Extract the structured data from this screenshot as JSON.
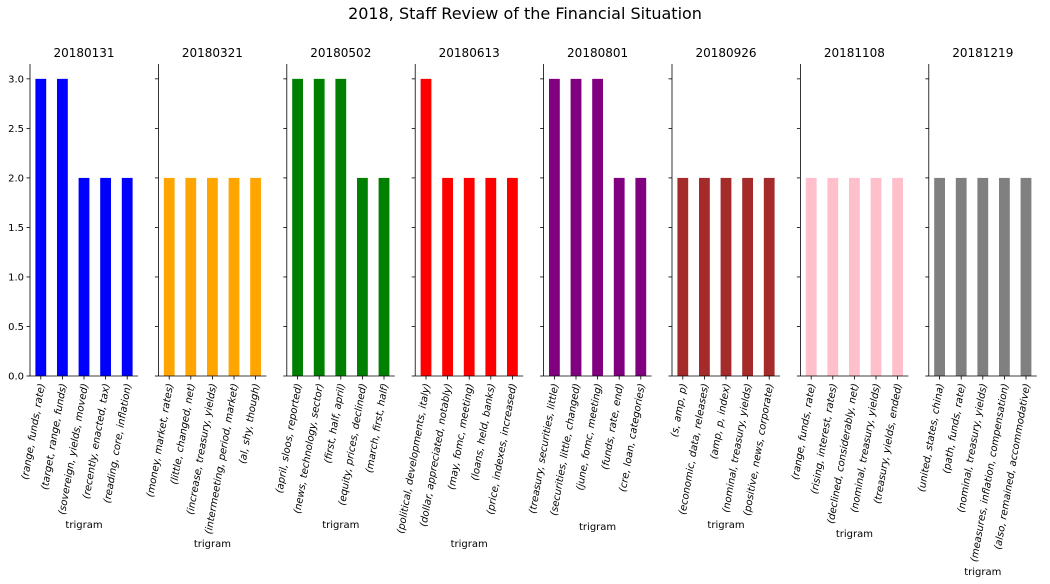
{
  "figure": {
    "title": "2018, Staff Review of the Financial Situation"
  },
  "chart_data": [
    {
      "type": "bar",
      "title": "20180131",
      "xlabel": "trigram",
      "ylabel": "",
      "ylim": [
        0,
        3.15
      ],
      "yticks": [
        "0.0",
        "0.5",
        "1.0",
        "1.5",
        "2.0",
        "2.5",
        "3.0"
      ],
      "color": "#0000ff",
      "categories": [
        "(range, funds, rate)",
        "(target, range, funds)",
        "(sovereign, yields, moved)",
        "(recently, enacted, tax)",
        "(reading, core, inflation)"
      ],
      "values": [
        3,
        3,
        2,
        2,
        2
      ]
    },
    {
      "type": "bar",
      "title": "20180321",
      "xlabel": "trigram",
      "ylabel": "",
      "ylim": [
        0,
        3.15
      ],
      "color": "#ffa500",
      "categories": [
        "(money, market, rates)",
        "(little, changed, net)",
        "(increase, treasury, yields)",
        "(intermeeting, period, market)",
        "(al, shy, though)"
      ],
      "values": [
        2,
        2,
        2,
        2,
        2
      ]
    },
    {
      "type": "bar",
      "title": "20180502",
      "xlabel": "trigram",
      "ylabel": "",
      "ylim": [
        0,
        3.15
      ],
      "color": "#008000",
      "categories": [
        "(april, sloos, reported)",
        "(news, technology, sector)",
        "(first, half, april)",
        "(equity, prices, declined)",
        "(march, first, half)"
      ],
      "values": [
        3,
        3,
        3,
        2,
        2
      ]
    },
    {
      "type": "bar",
      "title": "20180613",
      "xlabel": "trigram",
      "ylabel": "",
      "ylim": [
        0,
        3.15
      ],
      "color": "#ff0000",
      "categories": [
        "(political, developments, italy)",
        "(dollar, appreciated, notably)",
        "(may, fomc, meeting)",
        "(loans, held, banks)",
        "(price, indexes, increased)"
      ],
      "values": [
        3,
        2,
        2,
        2,
        2
      ]
    },
    {
      "type": "bar",
      "title": "20180801",
      "xlabel": "trigram",
      "ylabel": "",
      "ylim": [
        0,
        3.15
      ],
      "color": "#800080",
      "categories": [
        "(treasury, securities, little)",
        "(securities, little, changed)",
        "(june, fomc, meeting)",
        "(funds, rate, end)",
        "(cre, loan, categories)"
      ],
      "values": [
        3,
        3,
        3,
        2,
        2
      ]
    },
    {
      "type": "bar",
      "title": "20180926",
      "xlabel": "trigram",
      "ylabel": "",
      "ylim": [
        0,
        3.15
      ],
      "color": "#a52a2a",
      "categories": [
        "(s, amp, p)",
        "(economic, data, releases)",
        "(amp, p, index)",
        "(nominal, treasury, yields)",
        "(positive, news, corporate)"
      ],
      "values": [
        2,
        2,
        2,
        2,
        2
      ]
    },
    {
      "type": "bar",
      "title": "20181108",
      "xlabel": "trigram",
      "ylabel": "",
      "ylim": [
        0,
        3.15
      ],
      "color": "#ffc0cb",
      "categories": [
        "(range, funds, rate)",
        "(rising, interest, rates)",
        "(declined, considerably, net)",
        "(nominal, treasury, yields)",
        "(treasury, yields, ended)"
      ],
      "values": [
        2,
        2,
        2,
        2,
        2
      ]
    },
    {
      "type": "bar",
      "title": "20181219",
      "xlabel": "trigram",
      "ylabel": "",
      "ylim": [
        0,
        3.15
      ],
      "color": "#808080",
      "categories": [
        "(united, states, china)",
        "(path, funds, rate)",
        "(nominal, treasury, yields)",
        "(measures, inflation, compensation)",
        "(also, remained, accommodative)"
      ],
      "values": [
        2,
        2,
        2,
        2,
        2
      ]
    }
  ]
}
